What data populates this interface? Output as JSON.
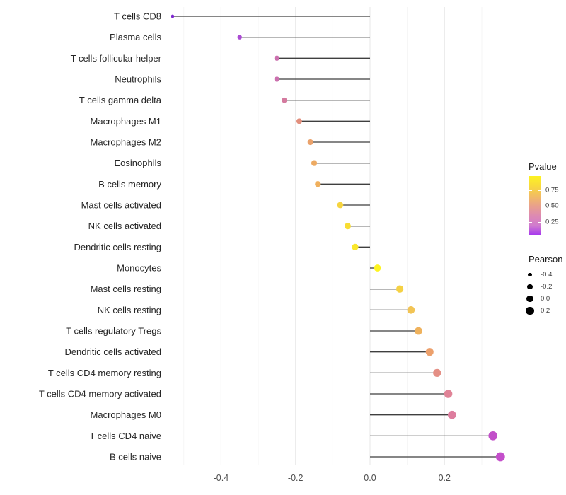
{
  "figure": {
    "background": "#ffffff"
  },
  "chart_data": {
    "type": "lollipop",
    "orientation": "horizontal",
    "title": "",
    "xlabel": "",
    "ylabel": "",
    "baseline": 0.0,
    "xlim": [
      -0.574,
      0.394
    ],
    "x_ticks": [
      {
        "value": -0.4,
        "label": "-0.4"
      },
      {
        "value": -0.2,
        "label": "-0.2"
      },
      {
        "value": 0.0,
        "label": "0.0"
      },
      {
        "value": 0.2,
        "label": "0.2"
      }
    ],
    "grid_values": [
      -0.5,
      -0.4,
      -0.3,
      -0.2,
      -0.1,
      0.0,
      0.1,
      0.2,
      0.3
    ],
    "grid_major_values": [
      -0.4,
      -0.2,
      0.0,
      0.2
    ],
    "stem_color": "#3f3f3f",
    "points": [
      {
        "label": "T cells CD8",
        "pearson": -0.53,
        "color": "#7d26cf"
      },
      {
        "label": "Plasma cells",
        "pearson": -0.35,
        "color": "#ab4bd3"
      },
      {
        "label": "T cells follicular helper",
        "pearson": -0.25,
        "color": "#cb70ae"
      },
      {
        "label": "Neutrophils",
        "pearson": -0.25,
        "color": "#cb70ae"
      },
      {
        "label": "T cells gamma delta",
        "pearson": -0.23,
        "color": "#d47a9f"
      },
      {
        "label": "Macrophages M1",
        "pearson": -0.19,
        "color": "#e28f7d"
      },
      {
        "label": "Macrophages M2",
        "pearson": -0.16,
        "color": "#eaa26b"
      },
      {
        "label": "Eosinophils",
        "pearson": -0.15,
        "color": "#edaa62"
      },
      {
        "label": "B cells memory",
        "pearson": -0.14,
        "color": "#f0b05d"
      },
      {
        "label": "Mast cells activated",
        "pearson": -0.08,
        "color": "#f6d43f"
      },
      {
        "label": "NK cells activated",
        "pearson": -0.06,
        "color": "#f8dd33"
      },
      {
        "label": "Dendritic cells resting",
        "pearson": -0.04,
        "color": "#fae72b"
      },
      {
        "label": "Monocytes",
        "pearson": 0.02,
        "color": "#fdf420"
      },
      {
        "label": "Mast cells resting",
        "pearson": 0.08,
        "color": "#f5d144"
      },
      {
        "label": "NK cells resting",
        "pearson": 0.11,
        "color": "#f2c455"
      },
      {
        "label": "T cells regulatory  Tregs",
        "pearson": 0.13,
        "color": "#efb25d"
      },
      {
        "label": "Dendritic cells activated",
        "pearson": 0.16,
        "color": "#eca06c"
      },
      {
        "label": "T cells CD4 memory resting",
        "pearson": 0.18,
        "color": "#e48f85"
      },
      {
        "label": "T cells CD4 memory activated",
        "pearson": 0.21,
        "color": "#e08397"
      },
      {
        "label": "Macrophages M0",
        "pearson": 0.22,
        "color": "#dd7d9e"
      },
      {
        "label": "T cells CD4 naive",
        "pearson": 0.33,
        "color": "#c24fc9"
      },
      {
        "label": "B cells naive",
        "pearson": 0.35,
        "color": "#c44fcb"
      }
    ]
  },
  "legend": {
    "pvalue": {
      "title": "Pvalue",
      "gradient": [
        "#fdf321",
        "#f8da3c",
        "#f2bd62",
        "#e9a18b",
        "#dd8ab2",
        "#d07cce",
        "#a434f0"
      ],
      "ticks": [
        {
          "label": "0.75",
          "pos": 0.24
        },
        {
          "label": "0.50",
          "pos": 0.5
        },
        {
          "label": "0.25",
          "pos": 0.77
        }
      ]
    },
    "pearson": {
      "title": "Pearson",
      "items": [
        {
          "label": "-0.4",
          "value": -0.4
        },
        {
          "label": "-0.2",
          "value": -0.2
        },
        {
          "label": "0.0",
          "value": 0.0
        },
        {
          "label": "0.2",
          "value": 0.2
        }
      ]
    }
  }
}
